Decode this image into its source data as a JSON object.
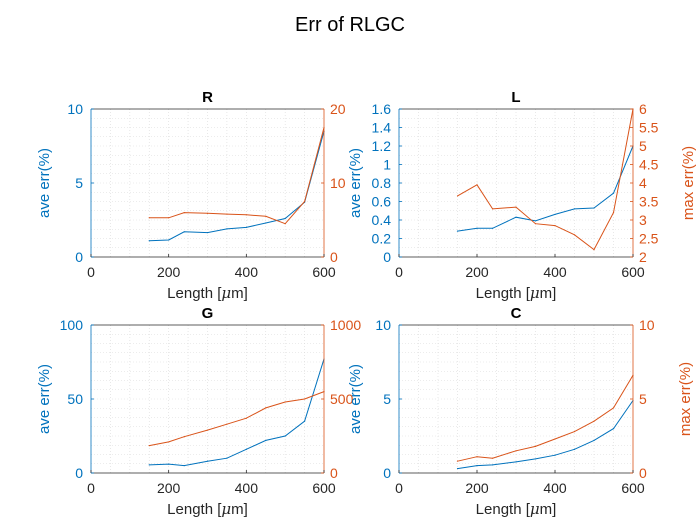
{
  "figure": {
    "title": "Err of RLGC"
  },
  "colors": {
    "left_axis": "#0072BD",
    "right_axis": "#D95319",
    "grid": "#d9d9d9",
    "box": "#262626"
  },
  "chart_data": [
    {
      "type": "line",
      "title": "R",
      "xlabel": "Length [μm]",
      "xlim": [
        0,
        600
      ],
      "xticks": [
        0,
        200,
        400,
        600
      ],
      "x": [
        150,
        200,
        240,
        300,
        350,
        400,
        450,
        500,
        550,
        600
      ],
      "ylabel_left": "ave err(%)",
      "ylim_left": [
        0,
        10
      ],
      "yticks_left": [
        0,
        5,
        10
      ],
      "ylabel_right": "",
      "ylim_right": [
        0,
        20
      ],
      "yticks_right": [
        0,
        10,
        20
      ],
      "series": [
        {
          "axis": "left",
          "values": [
            1.1,
            1.15,
            1.7,
            1.65,
            1.9,
            2.0,
            2.3,
            2.6,
            3.7,
            8.5
          ]
        },
        {
          "axis": "right",
          "values": [
            5.3,
            5.3,
            6.0,
            5.9,
            5.8,
            5.7,
            5.5,
            4.5,
            7.5,
            17.5
          ]
        }
      ],
      "grid": true
    },
    {
      "type": "line",
      "title": "L",
      "xlabel": "Length [μm]",
      "xlim": [
        0,
        600
      ],
      "xticks": [
        0,
        200,
        400,
        600
      ],
      "x": [
        150,
        200,
        240,
        300,
        350,
        400,
        450,
        500,
        550,
        600
      ],
      "ylabel_left": "ave err(%)",
      "ylim_left": [
        0,
        1.6
      ],
      "yticks_left": [
        0,
        0.2,
        0.4,
        0.6,
        0.8,
        1,
        1.2,
        1.4,
        1.6
      ],
      "ylabel_right": "max err(%)",
      "ylim_right": [
        2,
        6
      ],
      "yticks_right": [
        2,
        2.5,
        3,
        3.5,
        4,
        4.5,
        5,
        5.5,
        6
      ],
      "series": [
        {
          "axis": "left",
          "values": [
            0.28,
            0.31,
            0.31,
            0.43,
            0.39,
            0.46,
            0.52,
            0.53,
            0.69,
            1.2
          ]
        },
        {
          "axis": "right",
          "values": [
            3.65,
            3.95,
            3.3,
            3.35,
            2.9,
            2.85,
            2.6,
            2.2,
            3.2,
            6.0
          ]
        }
      ],
      "grid": true
    },
    {
      "type": "line",
      "title": "G",
      "xlabel": "Length [μm]",
      "xlim": [
        0,
        600
      ],
      "xticks": [
        0,
        200,
        400,
        600
      ],
      "x": [
        150,
        200,
        240,
        300,
        350,
        400,
        450,
        500,
        550,
        600
      ],
      "ylabel_left": "ave err(%)",
      "ylim_left": [
        0,
        100
      ],
      "yticks_left": [
        0,
        50,
        100
      ],
      "ylabel_right": "",
      "ylim_right": [
        0,
        1000
      ],
      "yticks_right": [
        0,
        500,
        1000
      ],
      "series": [
        {
          "axis": "left",
          "values": [
            5.5,
            6.0,
            5.0,
            8.0,
            10.0,
            16.0,
            22.0,
            25.0,
            35.0,
            77.0
          ]
        },
        {
          "axis": "right",
          "values": [
            185,
            210,
            245,
            290,
            330,
            370,
            440,
            480,
            500,
            550
          ]
        }
      ],
      "grid": true
    },
    {
      "type": "line",
      "title": "C",
      "xlabel": "Length [μm]",
      "xlim": [
        0,
        600
      ],
      "xticks": [
        0,
        200,
        400,
        600
      ],
      "x": [
        150,
        200,
        240,
        300,
        350,
        400,
        450,
        500,
        550,
        600
      ],
      "ylabel_left": "ave err(%)",
      "ylim_left": [
        0,
        10
      ],
      "yticks_left": [
        0,
        5,
        10
      ],
      "ylabel_right": "max err(%)",
      "ylim_right": [
        0,
        10
      ],
      "yticks_right": [
        0,
        5,
        10
      ],
      "series": [
        {
          "axis": "left",
          "values": [
            0.3,
            0.5,
            0.55,
            0.75,
            0.95,
            1.2,
            1.6,
            2.2,
            3.0,
            4.9
          ]
        },
        {
          "axis": "right",
          "values": [
            0.8,
            1.1,
            1.0,
            1.5,
            1.8,
            2.3,
            2.8,
            3.5,
            4.4,
            6.6
          ]
        }
      ],
      "grid": true
    }
  ]
}
